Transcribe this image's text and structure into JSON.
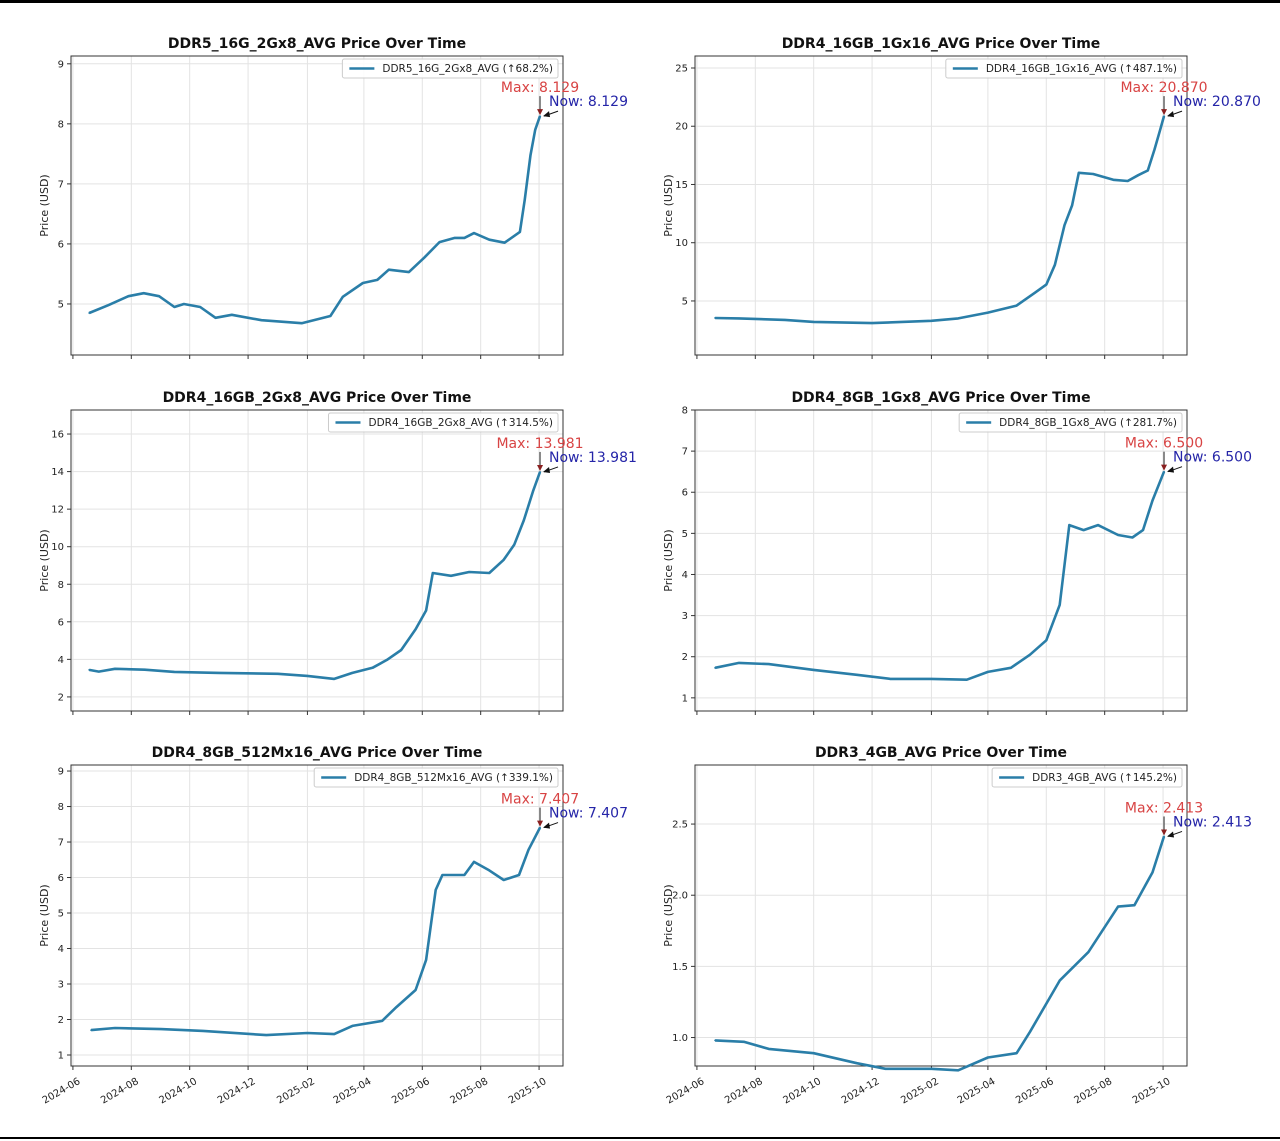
{
  "style": {
    "line_color": "#2a7ea8",
    "max_color": "#d84444",
    "now_color": "#2525a8",
    "grid": true
  },
  "chart_data": [
    {
      "type": "line",
      "title": "DDR5_16G_2Gx8_AVG Price Over Time",
      "xlabel": "",
      "ylabel": "Price (USD)",
      "xlim": [
        "2024-05-30",
        "2025-10-26"
      ],
      "ylim": [
        4.15,
        9.13
      ],
      "yticks": [
        "5",
        "6",
        "7",
        "8",
        "9"
      ],
      "xticks": [
        "2024-06",
        "2024-08",
        "2024-10",
        "2024-12",
        "2025-02",
        "2025-04",
        "2025-06",
        "2025-08",
        "2025-10"
      ],
      "show_xtick_labels": false,
      "legend": "top-right",
      "series": [
        {
          "name": "DDR5_16G_2Gx8_AVG (↑68.2%)",
          "x": [
            "2024-06-18",
            "2024-07-08",
            "2024-07-29",
            "2024-08-14",
            "2024-08-30",
            "2024-09-15",
            "2024-09-25",
            "2024-10-12",
            "2024-10-28",
            "2024-11-14",
            "2024-12-15",
            "2025-01-26",
            "2025-02-25",
            "2025-03-10",
            "2025-03-31",
            "2025-04-15",
            "2025-04-27",
            "2025-05-18",
            "2025-06-03",
            "2025-06-19",
            "2025-07-05",
            "2025-07-15",
            "2025-07-25",
            "2025-08-10",
            "2025-08-26",
            "2025-09-11",
            "2025-09-16",
            "2025-09-22",
            "2025-09-27",
            "2025-10-02"
          ],
          "y": [
            4.85,
            4.98,
            5.13,
            5.18,
            5.13,
            4.95,
            5.0,
            4.95,
            4.77,
            4.82,
            4.73,
            4.68,
            4.8,
            5.12,
            5.35,
            5.4,
            5.57,
            5.53,
            5.77,
            6.03,
            6.1,
            6.1,
            6.18,
            6.07,
            6.02,
            6.2,
            6.73,
            7.48,
            7.9,
            8.129
          ]
        }
      ],
      "annotations": {
        "max": "Max: 8.129",
        "now": "Now: 8.129"
      }
    },
    {
      "type": "line",
      "title": "DDR4_16GB_1Gx16_AVG Price Over Time",
      "xlabel": "",
      "ylabel": "Price (USD)",
      "xlim": [
        "2024-05-30",
        "2025-10-26"
      ],
      "ylim": [
        0.36,
        26.03
      ],
      "yticks": [
        "5",
        "10",
        "15",
        "20",
        "25"
      ],
      "xticks": [
        "2024-06",
        "2024-08",
        "2024-10",
        "2024-12",
        "2025-02",
        "2025-04",
        "2025-06",
        "2025-08",
        "2025-10"
      ],
      "show_xtick_labels": false,
      "legend": "top-right",
      "series": [
        {
          "name": "DDR4_16GB_1Gx16_AVG (↑487.1%)",
          "x": [
            "2024-06-20",
            "2024-07-15",
            "2024-09-01",
            "2024-10-01",
            "2024-12-01",
            "2025-02-01",
            "2025-03-01",
            "2025-04-01",
            "2025-05-01",
            "2025-05-20",
            "2025-06-01",
            "2025-06-10",
            "2025-06-20",
            "2025-06-28",
            "2025-07-05",
            "2025-07-20",
            "2025-08-10",
            "2025-08-25",
            "2025-09-05",
            "2025-09-15",
            "2025-09-22",
            "2025-09-28",
            "2025-10-02"
          ],
          "y": [
            3.54,
            3.5,
            3.37,
            3.2,
            3.1,
            3.3,
            3.5,
            4.0,
            4.6,
            5.7,
            6.4,
            8.1,
            11.5,
            13.2,
            16.0,
            15.9,
            15.4,
            15.3,
            15.8,
            16.2,
            18.0,
            19.7,
            20.87
          ]
        }
      ],
      "annotations": {
        "max": "Max: 20.870",
        "now": "Now: 20.870"
      }
    },
    {
      "type": "line",
      "title": "DDR4_16GB_2Gx8_AVG Price Over Time",
      "xlabel": "",
      "ylabel": "Price (USD)",
      "xlim": [
        "2024-05-30",
        "2025-10-26"
      ],
      "ylim": [
        1.25,
        17.28
      ],
      "yticks": [
        "2",
        "4",
        "6",
        "8",
        "10",
        "12",
        "14",
        "16"
      ],
      "xticks": [
        "2024-06",
        "2024-08",
        "2024-10",
        "2024-12",
        "2025-02",
        "2025-04",
        "2025-06",
        "2025-08",
        "2025-10"
      ],
      "show_xtick_labels": false,
      "legend": "top-right",
      "series": [
        {
          "name": "DDR4_16GB_2Gx8_AVG (↑314.5%)",
          "x": [
            "2024-06-18",
            "2024-06-28",
            "2024-07-15",
            "2024-08-15",
            "2024-09-15",
            "2024-11-01",
            "2025-01-01",
            "2025-02-01",
            "2025-03-01",
            "2025-03-20",
            "2025-04-10",
            "2025-04-25",
            "2025-05-10",
            "2025-05-25",
            "2025-06-05",
            "2025-06-12",
            "2025-07-01",
            "2025-07-20",
            "2025-08-10",
            "2025-08-25",
            "2025-09-05",
            "2025-09-15",
            "2025-09-25",
            "2025-10-02"
          ],
          "y": [
            3.44,
            3.35,
            3.5,
            3.45,
            3.33,
            3.28,
            3.23,
            3.12,
            2.96,
            3.28,
            3.55,
            3.97,
            4.5,
            5.6,
            6.6,
            8.6,
            8.45,
            8.65,
            8.6,
            9.3,
            10.1,
            11.4,
            13.0,
            13.981
          ]
        }
      ],
      "annotations": {
        "max": "Max: 13.981",
        "now": "Now: 13.981"
      }
    },
    {
      "type": "line",
      "title": "DDR4_8GB_1Gx8_AVG Price Over Time",
      "xlabel": "",
      "ylabel": "Price (USD)",
      "xlim": [
        "2024-05-30",
        "2025-10-26"
      ],
      "ylim": [
        0.68,
        8.0
      ],
      "yticks": [
        "1",
        "2",
        "3",
        "4",
        "5",
        "6",
        "7",
        "8"
      ],
      "xticks": [
        "2024-06",
        "2024-08",
        "2024-10",
        "2024-12",
        "2025-02",
        "2025-04",
        "2025-06",
        "2025-08",
        "2025-10"
      ],
      "show_xtick_labels": false,
      "legend": "top-right",
      "series": [
        {
          "name": "DDR4_8GB_1Gx8_AVG (↑281.7%)",
          "x": [
            "2024-06-20",
            "2024-07-15",
            "2024-08-15",
            "2024-10-01",
            "2024-11-15",
            "2024-12-20",
            "2025-02-01",
            "2025-03-10",
            "2025-04-01",
            "2025-04-25",
            "2025-05-15",
            "2025-06-01",
            "2025-06-15",
            "2025-06-25",
            "2025-07-10",
            "2025-07-25",
            "2025-08-15",
            "2025-08-30",
            "2025-09-10",
            "2025-09-20",
            "2025-10-02"
          ],
          "y": [
            1.73,
            1.85,
            1.82,
            1.68,
            1.56,
            1.46,
            1.46,
            1.44,
            1.63,
            1.73,
            2.05,
            2.4,
            3.26,
            5.2,
            5.08,
            5.2,
            4.96,
            4.9,
            5.08,
            5.8,
            6.5
          ]
        }
      ],
      "annotations": {
        "max": "Max: 6.500",
        "now": "Now: 6.500"
      }
    },
    {
      "type": "line",
      "title": "DDR4_8GB_512Mx16_AVG Price Over Time",
      "xlabel": "",
      "ylabel": "Price (USD)",
      "xlim": [
        "2024-05-30",
        "2025-10-26"
      ],
      "ylim": [
        0.69,
        9.17
      ],
      "yticks": [
        "1",
        "2",
        "3",
        "4",
        "5",
        "6",
        "7",
        "8",
        "9"
      ],
      "xticks": [
        "2024-06",
        "2024-08",
        "2024-10",
        "2024-12",
        "2025-02",
        "2025-04",
        "2025-06",
        "2025-08",
        "2025-10"
      ],
      "show_xtick_labels": true,
      "legend": "top-right",
      "series": [
        {
          "name": "DDR4_8GB_512Mx16_AVG (↑339.1%)",
          "x": [
            "2024-06-20",
            "2024-07-15",
            "2024-09-01",
            "2024-10-15",
            "2024-12-20",
            "2025-02-01",
            "2025-03-01",
            "2025-03-20",
            "2025-04-20",
            "2025-05-05",
            "2025-05-25",
            "2025-06-05",
            "2025-06-15",
            "2025-06-22",
            "2025-07-15",
            "2025-07-25",
            "2025-08-10",
            "2025-08-25",
            "2025-09-10",
            "2025-09-20",
            "2025-10-02"
          ],
          "y": [
            1.7,
            1.76,
            1.73,
            1.68,
            1.56,
            1.62,
            1.59,
            1.82,
            1.96,
            2.35,
            2.83,
            3.68,
            5.65,
            6.07,
            6.07,
            6.44,
            6.2,
            5.93,
            6.07,
            6.78,
            7.407
          ]
        }
      ],
      "annotations": {
        "max": "Max: 7.407",
        "now": "Now: 7.407"
      }
    },
    {
      "type": "line",
      "title": "DDR3_4GB_AVG Price Over Time",
      "xlabel": "",
      "ylabel": "Price (USD)",
      "xlim": [
        "2024-05-30",
        "2025-10-26"
      ],
      "ylim": [
        0.8,
        2.915
      ],
      "yticks": [
        "1.0",
        "1.5",
        "2.0",
        "2.5"
      ],
      "xticks": [
        "2024-06",
        "2024-08",
        "2024-10",
        "2024-12",
        "2025-02",
        "2025-04",
        "2025-06",
        "2025-08",
        "2025-10"
      ],
      "show_xtick_labels": true,
      "legend": "top-right",
      "series": [
        {
          "name": "DDR3_4GB_AVG (↑145.2%)",
          "x": [
            "2024-06-20",
            "2024-07-20",
            "2024-08-15",
            "2024-10-01",
            "2024-11-15",
            "2024-12-15",
            "2025-02-01",
            "2025-03-01",
            "2025-04-01",
            "2025-05-01",
            "2025-05-15",
            "2025-06-15",
            "2025-07-15",
            "2025-08-15",
            "2025-09-01",
            "2025-09-20",
            "2025-10-02"
          ],
          "y": [
            0.98,
            0.97,
            0.92,
            0.89,
            0.82,
            0.78,
            0.78,
            0.77,
            0.86,
            0.89,
            1.04,
            1.4,
            1.6,
            1.92,
            1.93,
            2.16,
            2.413
          ]
        }
      ],
      "annotations": {
        "max": "Max: 2.413",
        "now": "Now: 2.413"
      }
    }
  ]
}
